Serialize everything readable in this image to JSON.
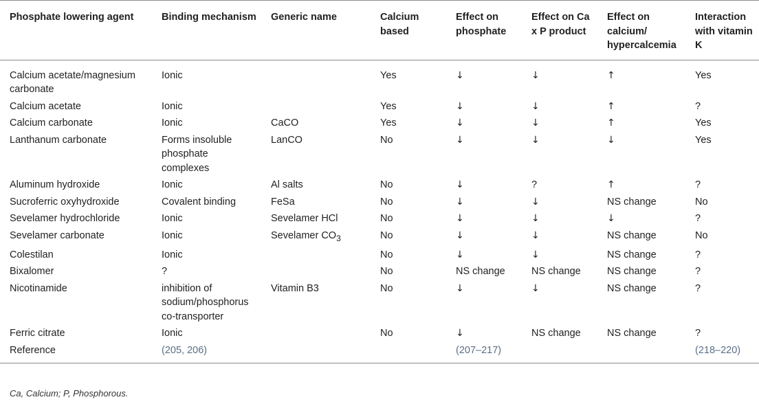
{
  "table": {
    "headers": [
      "Phosphate lowering agent",
      "Binding mechanism",
      "Generic name",
      "Calcium based",
      "Effect on phosphate",
      "Effect on Ca x P product",
      "Effect on calcium/ hypercalcemia",
      "Interaction with vitamin K"
    ],
    "rows": [
      {
        "agent": "Calcium acetate/magnesium carbonate",
        "mechanism": "Ionic",
        "generic": "",
        "calcium": "Yes",
        "phosphate": "↓",
        "cap": "↓",
        "hyper": "↑",
        "vitk": "Yes"
      },
      {
        "agent": "Calcium acetate",
        "mechanism": "Ionic",
        "generic": "",
        "calcium": "Yes",
        "phosphate": "↓",
        "cap": "↓",
        "hyper": "↑",
        "vitk": "?"
      },
      {
        "agent": "Calcium carbonate",
        "mechanism": "Ionic",
        "generic": "CaCO",
        "calcium": "Yes",
        "phosphate": "↓",
        "cap": "↓",
        "hyper": "↑",
        "vitk": "Yes"
      },
      {
        "agent": "Lanthanum carbonate",
        "mechanism": "Forms insoluble phosphate complexes",
        "generic": "LanCO",
        "calcium": "No",
        "phosphate": "↓",
        "cap": "↓",
        "hyper": "↓",
        "vitk": "Yes"
      },
      {
        "agent": "Aluminum hydroxide",
        "mechanism": "Ionic",
        "generic": "Al salts",
        "calcium": "No",
        "phosphate": "↓",
        "cap": "?",
        "hyper": "↑",
        "vitk": "?"
      },
      {
        "agent": "Sucroferric oxyhydroxide",
        "mechanism": "Covalent binding",
        "generic": "FeSa",
        "calcium": "No",
        "phosphate": "↓",
        "cap": "↓",
        "hyper": "NS change",
        "vitk": "No"
      },
      {
        "agent": "Sevelamer hydrochloride",
        "mechanism": "Ionic",
        "generic": "Sevelamer HCl",
        "calcium": "No",
        "phosphate": "↓",
        "cap": "↓",
        "hyper": "↓",
        "vitk": "?"
      },
      {
        "agent": "Sevelamer carbonate",
        "mechanism": "Ionic",
        "generic": "Sevelamer CO",
        "generic_sub": "3",
        "calcium": "No",
        "phosphate": "↓",
        "cap": "↓",
        "hyper": "NS change",
        "vitk": "No"
      },
      {
        "agent": "Colestilan",
        "mechanism": "Ionic",
        "generic": "",
        "calcium": "No",
        "phosphate": "↓",
        "cap": "↓",
        "hyper": "NS change",
        "vitk": "?"
      },
      {
        "agent": "Bixalomer",
        "mechanism": "?",
        "generic": "",
        "calcium": "No",
        "phosphate": "NS change",
        "cap": "NS change",
        "hyper": "NS change",
        "vitk": "?"
      },
      {
        "agent": "Nicotinamide",
        "mechanism": "inhibition of sodium/phosphorus co-transporter",
        "generic": "Vitamin B3",
        "calcium": "No",
        "phosphate": "↓",
        "cap": "↓",
        "hyper": "NS change",
        "vitk": "?"
      },
      {
        "agent": "Ferric citrate",
        "mechanism": "Ionic",
        "generic": "",
        "calcium": "No",
        "phosphate": "↓",
        "cap": "NS change",
        "hyper": "NS change",
        "vitk": "?"
      },
      {
        "agent": "Reference",
        "mechanism": "(205, 206)",
        "generic": "",
        "calcium": "",
        "phosphate": "(207–217)",
        "cap": "",
        "hyper": "",
        "vitk": "(218–220)",
        "is_reference": true
      }
    ]
  },
  "footnote": "Ca, Calcium; P, Phosphorous.",
  "colors": {
    "text": "#222222",
    "rule": "#8a8a8a",
    "reference_link": "#5a6e86"
  }
}
